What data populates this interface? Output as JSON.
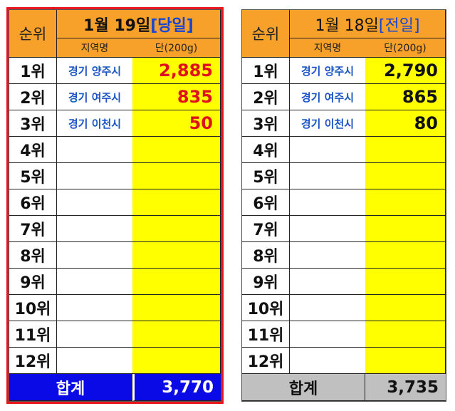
{
  "today": {
    "rank_header": "순위",
    "date_text": "1월 19일 ",
    "date_tag": "[당일]",
    "region_header": "지역명",
    "unit_header": "단(200g)",
    "rows": [
      {
        "rank": "1위",
        "region": "경기 양주시",
        "price": "2,885"
      },
      {
        "rank": "2위",
        "region": "경기 여주시",
        "price": "835"
      },
      {
        "rank": "3위",
        "region": "경기 이천시",
        "price": "50"
      },
      {
        "rank": "4위",
        "region": "",
        "price": ""
      },
      {
        "rank": "5위",
        "region": "",
        "price": ""
      },
      {
        "rank": "6위",
        "region": "",
        "price": ""
      },
      {
        "rank": "7위",
        "region": "",
        "price": ""
      },
      {
        "rank": "8위",
        "region": "",
        "price": ""
      },
      {
        "rank": "9위",
        "region": "",
        "price": ""
      },
      {
        "rank": "10위",
        "region": "",
        "price": ""
      },
      {
        "rank": "11위",
        "region": "",
        "price": ""
      },
      {
        "rank": "12위",
        "region": "",
        "price": ""
      }
    ],
    "total_label": "합계",
    "total_value": "3,770"
  },
  "previous": {
    "rank_header": "순위",
    "date_text": "1월 18일 ",
    "date_tag": "[전일]",
    "region_header": "지역명",
    "unit_header": "단(200g)",
    "rows": [
      {
        "rank": "1위",
        "region": "경기 양주시",
        "price": "2,790"
      },
      {
        "rank": "2위",
        "region": "경기 여주시",
        "price": "865"
      },
      {
        "rank": "3위",
        "region": "경기 이천시",
        "price": "80"
      },
      {
        "rank": "4위",
        "region": "",
        "price": ""
      },
      {
        "rank": "5위",
        "region": "",
        "price": ""
      },
      {
        "rank": "6위",
        "region": "",
        "price": ""
      },
      {
        "rank": "7위",
        "region": "",
        "price": ""
      },
      {
        "rank": "8위",
        "region": "",
        "price": ""
      },
      {
        "rank": "9위",
        "region": "",
        "price": ""
      },
      {
        "rank": "10위",
        "region": "",
        "price": ""
      },
      {
        "rank": "11위",
        "region": "",
        "price": ""
      },
      {
        "rank": "12위",
        "region": "",
        "price": ""
      }
    ],
    "total_label": "합계",
    "total_value": "3,735"
  },
  "colors": {
    "header_orange": "#f7a12b",
    "price_yellow": "#ffff00",
    "today_price_red": "#e0101c",
    "today_total_blue": "#0a0ae6",
    "prev_total_gray": "#c0c0c0",
    "region_blue": "#1a54c4"
  }
}
